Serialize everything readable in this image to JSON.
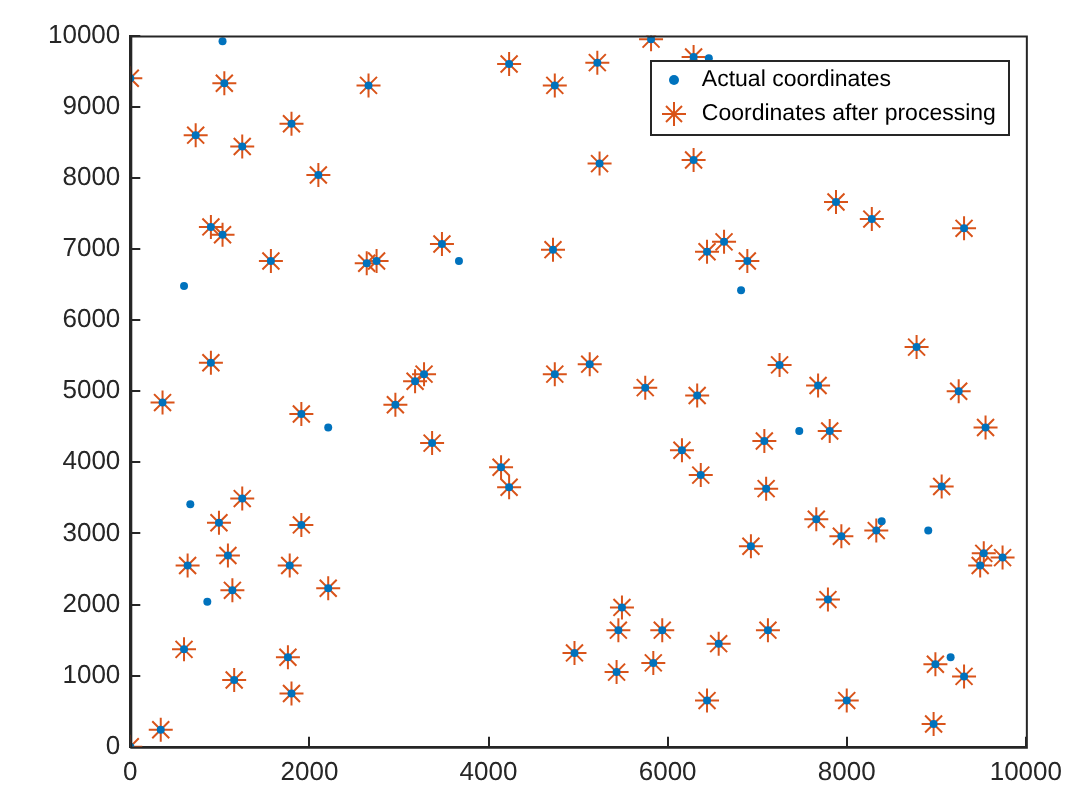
{
  "chart_data": {
    "type": "scatter",
    "xlim": [
      0,
      10000
    ],
    "ylim": [
      0,
      10000
    ],
    "xticks": [
      0,
      2000,
      4000,
      6000,
      8000,
      10000
    ],
    "yticks": [
      0,
      1000,
      2000,
      3000,
      4000,
      5000,
      6000,
      7000,
      8000,
      9000,
      10000
    ],
    "grid": false,
    "legend": "top right",
    "series": [
      {
        "name": "Actual coordinates",
        "color": "#0072bd",
        "marker": "circle",
        "x": [
          0,
          1050,
          2660,
          4230,
          4740,
          5215,
          5815,
          6290,
          730,
          1250,
          1800,
          2100,
          5240,
          6290,
          900,
          1030,
          1570,
          2640,
          2750,
          3480,
          4720,
          6440,
          6630,
          6890,
          7880,
          8280,
          9310,
          900,
          3180,
          3280,
          4740,
          5130,
          5750,
          6330,
          7250,
          7680,
          8780,
          9250,
          360,
          1910,
          2960,
          3370,
          4140,
          4230,
          9550,
          7810,
          7080,
          6160,
          6370,
          7100,
          9060,
          1250,
          990,
          1910,
          7660,
          8330,
          7940,
          6930,
          1090,
          640,
          1780,
          9530,
          9740,
          9490,
          1140,
          2210,
          7790,
          5490,
          5450,
          5940,
          7120,
          6570,
          600,
          1760,
          4960,
          5840,
          8990,
          1160,
          5430,
          9310,
          1800,
          6440,
          8000,
          8970,
          340,
          0,
          1030,
          6460,
          600,
          3670,
          6820,
          2210,
          7470,
          670,
          8390,
          8910,
          860,
          9160
        ],
        "values": [
          9400,
          9330,
          9300,
          9600,
          9300,
          9620,
          9950,
          9700,
          8600,
          8440,
          8760,
          8040,
          8200,
          8250,
          7310,
          7200,
          6830,
          6800,
          6830,
          7070,
          6990,
          6960,
          7100,
          6830,
          7660,
          7420,
          7290,
          5400,
          5140,
          5240,
          5240,
          5380,
          5050,
          4940,
          5370,
          5080,
          5620,
          5000,
          4840,
          4680,
          4810,
          4270,
          3930,
          3650,
          4490,
          4440,
          4300,
          4170,
          3820,
          3630,
          3660,
          3490,
          3150,
          3120,
          3200,
          3040,
          2960,
          2820,
          2690,
          2550,
          2550,
          2720,
          2660,
          2550,
          2200,
          2230,
          2070,
          1960,
          1640,
          1640,
          1640,
          1450,
          1370,
          1260,
          1320,
          1180,
          1160,
          940,
          1050,
          990,
          750,
          650,
          650,
          320,
          240,
          0,
          9920,
          9680,
          6480,
          6830,
          6420,
          4490,
          4440,
          3410,
          3170,
          3040,
          2040,
          1260
        ]
      },
      {
        "name": "Coordinates after processing",
        "color": "#d95319",
        "marker": "cross",
        "x": [
          0,
          1050,
          2660,
          4230,
          4740,
          5215,
          5815,
          6290,
          730,
          1250,
          1800,
          2100,
          5240,
          6290,
          900,
          1030,
          1570,
          2640,
          2750,
          3480,
          4720,
          6440,
          6630,
          6890,
          7880,
          8280,
          9310,
          900,
          3180,
          3280,
          4740,
          5130,
          5750,
          6330,
          7250,
          7680,
          8780,
          9250,
          360,
          1910,
          2960,
          3370,
          4140,
          4230,
          9550,
          7810,
          7080,
          6160,
          6370,
          7100,
          9060,
          1250,
          990,
          1910,
          7660,
          8330,
          7940,
          6930,
          1090,
          640,
          1780,
          9530,
          9740,
          9490,
          1140,
          2210,
          7790,
          5490,
          5450,
          5940,
          7120,
          6570,
          600,
          1760,
          4960,
          5840,
          8990,
          1160,
          5430,
          9310,
          1800,
          6440,
          8000,
          8970,
          340,
          0
        ],
        "values": [
          9400,
          9330,
          9300,
          9600,
          9300,
          9620,
          9950,
          9700,
          8600,
          8440,
          8760,
          8040,
          8200,
          8250,
          7310,
          7200,
          6830,
          6800,
          6830,
          7070,
          6990,
          6960,
          7100,
          6830,
          7660,
          7420,
          7290,
          5400,
          5140,
          5240,
          5240,
          5380,
          5050,
          4940,
          5370,
          5080,
          5620,
          5000,
          4840,
          4680,
          4810,
          4270,
          3930,
          3650,
          4490,
          4440,
          4300,
          4170,
          3820,
          3630,
          3660,
          3490,
          3150,
          3120,
          3200,
          3040,
          2960,
          2820,
          2690,
          2550,
          2550,
          2720,
          2660,
          2550,
          2200,
          2230,
          2070,
          1960,
          1640,
          1640,
          1640,
          1450,
          1370,
          1260,
          1320,
          1180,
          1160,
          940,
          1050,
          990,
          750,
          650,
          650,
          320,
          240,
          0
        ]
      }
    ]
  }
}
